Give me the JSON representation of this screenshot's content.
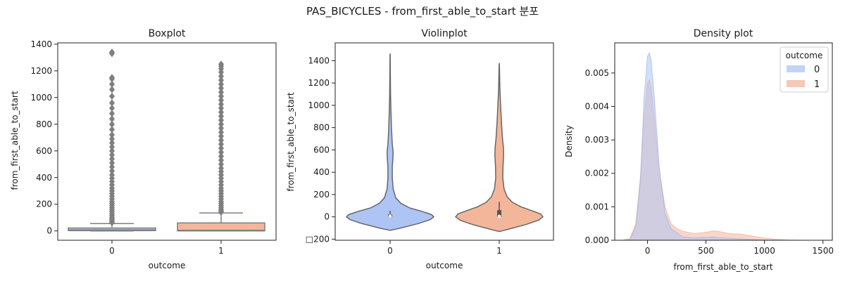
{
  "figure": {
    "title": "PAS_BICYCLES - from_first_able_to_start 분포"
  },
  "chart_data": [
    {
      "type": "box",
      "title": "Boxplot",
      "xlabel": "outcome",
      "ylabel": "from_first_able_to_start",
      "categories": [
        "0",
        "1"
      ],
      "colors": [
        "#aec4f5",
        "#f4b69b"
      ],
      "ylim": [
        -70,
        1410
      ],
      "yticks": [
        0,
        200,
        400,
        600,
        800,
        1000,
        1200,
        1400
      ],
      "boxes": [
        {
          "category": "0",
          "whisker_low": 0,
          "q1": 2,
          "median": 8,
          "q3": 22,
          "whisker_high": 55,
          "outliers": [
            62,
            70,
            80,
            90,
            100,
            115,
            130,
            145,
            160,
            175,
            190,
            205,
            220,
            240,
            260,
            280,
            300,
            320,
            345,
            370,
            395,
            420,
            450,
            480,
            510,
            540,
            570,
            600,
            630,
            660,
            690,
            720,
            760,
            800,
            840,
            880,
            920,
            960,
            1010,
            1060,
            1100,
            1140,
            1150,
            1330,
            1340
          ]
        },
        {
          "category": "1",
          "whisker_low": 0,
          "q1": 0,
          "median": 5,
          "q3": 60,
          "whisker_high": 135,
          "outliers": [
            140,
            150,
            160,
            175,
            190,
            205,
            220,
            240,
            260,
            280,
            300,
            320,
            345,
            370,
            395,
            420,
            445,
            470,
            500,
            530,
            560,
            590,
            620,
            650,
            680,
            710,
            740,
            770,
            800,
            830,
            860,
            890,
            920,
            950,
            980,
            1010,
            1040,
            1070,
            1100,
            1130,
            1160,
            1190,
            1215,
            1235,
            1250
          ]
        }
      ]
    },
    {
      "type": "violin",
      "title": "Violinplot",
      "xlabel": "outcome",
      "ylabel": "from_first_able_to_start",
      "categories": [
        "0",
        "1"
      ],
      "colors": [
        "#aec4f5",
        "#f4b69b"
      ],
      "ylim": [
        -210,
        1560
      ],
      "yticks": [
        -200,
        0,
        200,
        400,
        600,
        800,
        1000,
        1200,
        1400
      ],
      "ytick_labels": [
        "□200",
        "0",
        "200",
        "400",
        "600",
        "800",
        "1000",
        "1200",
        "1400"
      ],
      "violins": [
        {
          "category": "0",
          "min": -120,
          "max": 1460,
          "q1": 2,
          "median": 8,
          "q3": 22,
          "whisker_low": 0,
          "whisker_high": 55
        },
        {
          "category": "1",
          "min": -130,
          "max": 1375,
          "q1": 0,
          "median": 5,
          "q3": 60,
          "whisker_low": 0,
          "whisker_high": 135
        }
      ]
    },
    {
      "type": "area",
      "title": "Density plot",
      "xlabel": "from_first_able_to_start",
      "ylabel": "Density",
      "xlim": [
        -280,
        1580
      ],
      "ylim": [
        0,
        0.0059
      ],
      "xticks": [
        0,
        500,
        1000,
        1500
      ],
      "yticks": [
        0,
        0.001,
        0.002,
        0.003,
        0.004,
        0.005
      ],
      "ytick_labels": [
        "0.000",
        "0.001",
        "0.002",
        "0.003",
        "0.004",
        "0.005"
      ],
      "legend": {
        "title": "outcome",
        "placement": "top-right"
      },
      "series": [
        {
          "name": "0",
          "color": "#aec4f5",
          "x": [
            -200,
            -150,
            -100,
            -60,
            -30,
            0,
            15,
            30,
            60,
            100,
            150,
            200,
            300,
            400,
            500,
            560,
            600,
            700,
            800,
            900,
            1000,
            1100,
            1200,
            1300,
            1400,
            1450
          ],
          "y": [
            0,
            2e-05,
            0.0004,
            0.0018,
            0.0042,
            0.0055,
            0.0056,
            0.0054,
            0.0042,
            0.0022,
            0.0008,
            0.00035,
            0.0001,
            7e-05,
            9e-05,
            0.0001,
            8e-05,
            6e-05,
            4e-05,
            2e-05,
            1e-05,
            5e-06,
            0,
            0,
            0,
            0
          ]
        },
        {
          "name": "1",
          "color": "#f4b69b",
          "x": [
            -220,
            -150,
            -100,
            -60,
            -30,
            0,
            15,
            30,
            60,
            100,
            150,
            200,
            250,
            300,
            400,
            500,
            560,
            600,
            700,
            800,
            900,
            1000,
            1100,
            1200,
            1300,
            1380
          ],
          "y": [
            0,
            5e-05,
            0.0005,
            0.0019,
            0.0036,
            0.0047,
            0.0048,
            0.0046,
            0.0036,
            0.0021,
            0.001,
            0.0005,
            0.00035,
            0.00027,
            0.0002,
            0.00024,
            0.00028,
            0.00027,
            0.0002,
            0.00018,
            0.00012,
            7e-05,
            3e-05,
            1e-05,
            0,
            0
          ]
        }
      ]
    }
  ]
}
